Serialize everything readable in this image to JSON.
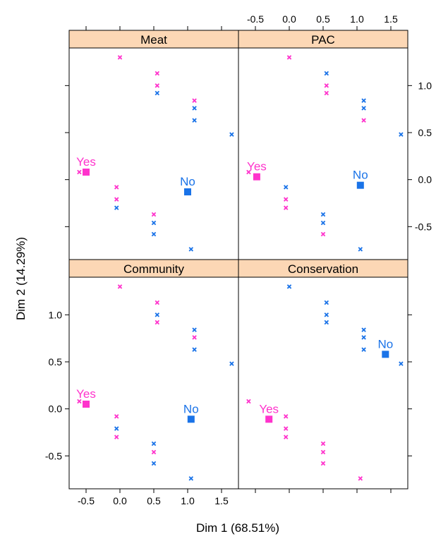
{
  "chart_data": {
    "type": "scatter",
    "layout": "2x2 lattice panels",
    "xlabel": "Dim 1 (68.51%)",
    "ylabel": "Dim 2 (14.29%)",
    "xlim": [
      -0.75,
      1.75
    ],
    "ylim": [
      -0.85,
      1.4
    ],
    "x_ticks": [
      -0.5,
      0.0,
      0.5,
      1.0,
      1.5
    ],
    "x_tick_labels": [
      "-0.5",
      "0.0",
      "0.5",
      "1.0",
      "1.5"
    ],
    "y_ticks": [
      -0.5,
      0.0,
      0.5,
      1.0
    ],
    "y_tick_labels": [
      "-0.5",
      "0.0",
      "0.5",
      "1.0"
    ],
    "colors": {
      "Yes": "#ff33cc",
      "No": "#1a73e8",
      "strip": "#fcd7b5"
    },
    "panels": [
      {
        "title": "Meat",
        "row": 0,
        "col": 0,
        "points": [
          {
            "x": 0.0,
            "y": 1.3,
            "g": "Yes"
          },
          {
            "x": 0.55,
            "y": 1.13,
            "g": "Yes"
          },
          {
            "x": 0.55,
            "y": 1.0,
            "g": "Yes"
          },
          {
            "x": 0.55,
            "y": 0.92,
            "g": "No"
          },
          {
            "x": 1.1,
            "y": 0.84,
            "g": "Yes"
          },
          {
            "x": 1.1,
            "y": 0.76,
            "g": "No"
          },
          {
            "x": 1.1,
            "y": 0.63,
            "g": "No"
          },
          {
            "x": 1.65,
            "y": 0.48,
            "g": "No"
          },
          {
            "x": -0.6,
            "y": 0.08,
            "g": "Yes"
          },
          {
            "x": -0.05,
            "y": -0.08,
            "g": "Yes"
          },
          {
            "x": -0.05,
            "y": -0.21,
            "g": "Yes"
          },
          {
            "x": -0.05,
            "y": -0.3,
            "g": "No"
          },
          {
            "x": 0.5,
            "y": -0.37,
            "g": "Yes"
          },
          {
            "x": 0.5,
            "y": -0.46,
            "g": "No"
          },
          {
            "x": 0.5,
            "y": -0.58,
            "g": "No"
          },
          {
            "x": 1.05,
            "y": -0.74,
            "g": "No"
          }
        ],
        "centroids": [
          {
            "label": "Yes",
            "x": -0.5,
            "y": 0.08
          },
          {
            "label": "No",
            "x": 1.0,
            "y": -0.13
          }
        ]
      },
      {
        "title": "PAC",
        "row": 0,
        "col": 1,
        "points": [
          {
            "x": 0.0,
            "y": 1.3,
            "g": "Yes"
          },
          {
            "x": 0.55,
            "y": 1.13,
            "g": "No"
          },
          {
            "x": 0.55,
            "y": 1.0,
            "g": "Yes"
          },
          {
            "x": 0.55,
            "y": 0.92,
            "g": "Yes"
          },
          {
            "x": 1.1,
            "y": 0.84,
            "g": "No"
          },
          {
            "x": 1.1,
            "y": 0.76,
            "g": "No"
          },
          {
            "x": 1.1,
            "y": 0.63,
            "g": "Yes"
          },
          {
            "x": 1.65,
            "y": 0.48,
            "g": "No"
          },
          {
            "x": -0.6,
            "y": 0.08,
            "g": "Yes"
          },
          {
            "x": -0.05,
            "y": -0.08,
            "g": "No"
          },
          {
            "x": -0.05,
            "y": -0.21,
            "g": "Yes"
          },
          {
            "x": -0.05,
            "y": -0.3,
            "g": "Yes"
          },
          {
            "x": 0.5,
            "y": -0.37,
            "g": "No"
          },
          {
            "x": 0.5,
            "y": -0.46,
            "g": "No"
          },
          {
            "x": 0.5,
            "y": -0.58,
            "g": "Yes"
          },
          {
            "x": 1.05,
            "y": -0.74,
            "g": "No"
          }
        ],
        "centroids": [
          {
            "label": "Yes",
            "x": -0.48,
            "y": 0.03
          },
          {
            "label": "No",
            "x": 1.05,
            "y": -0.06
          }
        ]
      },
      {
        "title": "Community",
        "row": 1,
        "col": 0,
        "points": [
          {
            "x": 0.0,
            "y": 1.3,
            "g": "Yes"
          },
          {
            "x": 0.55,
            "y": 1.13,
            "g": "Yes"
          },
          {
            "x": 0.55,
            "y": 1.0,
            "g": "No"
          },
          {
            "x": 0.55,
            "y": 0.92,
            "g": "Yes"
          },
          {
            "x": 1.1,
            "y": 0.84,
            "g": "No"
          },
          {
            "x": 1.1,
            "y": 0.76,
            "g": "Yes"
          },
          {
            "x": 1.1,
            "y": 0.63,
            "g": "No"
          },
          {
            "x": 1.65,
            "y": 0.48,
            "g": "No"
          },
          {
            "x": -0.6,
            "y": 0.08,
            "g": "Yes"
          },
          {
            "x": -0.05,
            "y": -0.08,
            "g": "Yes"
          },
          {
            "x": -0.05,
            "y": -0.21,
            "g": "No"
          },
          {
            "x": -0.05,
            "y": -0.3,
            "g": "Yes"
          },
          {
            "x": 0.5,
            "y": -0.37,
            "g": "No"
          },
          {
            "x": 0.5,
            "y": -0.46,
            "g": "Yes"
          },
          {
            "x": 0.5,
            "y": -0.58,
            "g": "No"
          },
          {
            "x": 1.05,
            "y": -0.74,
            "g": "No"
          }
        ],
        "centroids": [
          {
            "label": "Yes",
            "x": -0.5,
            "y": 0.05
          },
          {
            "label": "No",
            "x": 1.05,
            "y": -0.11
          }
        ]
      },
      {
        "title": "Conservation",
        "row": 1,
        "col": 1,
        "points": [
          {
            "x": 0.0,
            "y": 1.3,
            "g": "No"
          },
          {
            "x": 0.55,
            "y": 1.13,
            "g": "No"
          },
          {
            "x": 0.55,
            "y": 1.0,
            "g": "No"
          },
          {
            "x": 0.55,
            "y": 0.92,
            "g": "No"
          },
          {
            "x": 1.1,
            "y": 0.84,
            "g": "No"
          },
          {
            "x": 1.1,
            "y": 0.76,
            "g": "No"
          },
          {
            "x": 1.1,
            "y": 0.63,
            "g": "No"
          },
          {
            "x": 1.65,
            "y": 0.48,
            "g": "No"
          },
          {
            "x": -0.6,
            "y": 0.08,
            "g": "Yes"
          },
          {
            "x": -0.05,
            "y": -0.08,
            "g": "Yes"
          },
          {
            "x": -0.05,
            "y": -0.21,
            "g": "Yes"
          },
          {
            "x": -0.05,
            "y": -0.3,
            "g": "Yes"
          },
          {
            "x": 0.5,
            "y": -0.37,
            "g": "Yes"
          },
          {
            "x": 0.5,
            "y": -0.46,
            "g": "Yes"
          },
          {
            "x": 0.5,
            "y": -0.58,
            "g": "Yes"
          },
          {
            "x": 1.05,
            "y": -0.74,
            "g": "Yes"
          }
        ],
        "centroids": [
          {
            "label": "Yes",
            "x": -0.3,
            "y": -0.11
          },
          {
            "label": "No",
            "x": 1.42,
            "y": 0.58
          }
        ]
      }
    ]
  }
}
